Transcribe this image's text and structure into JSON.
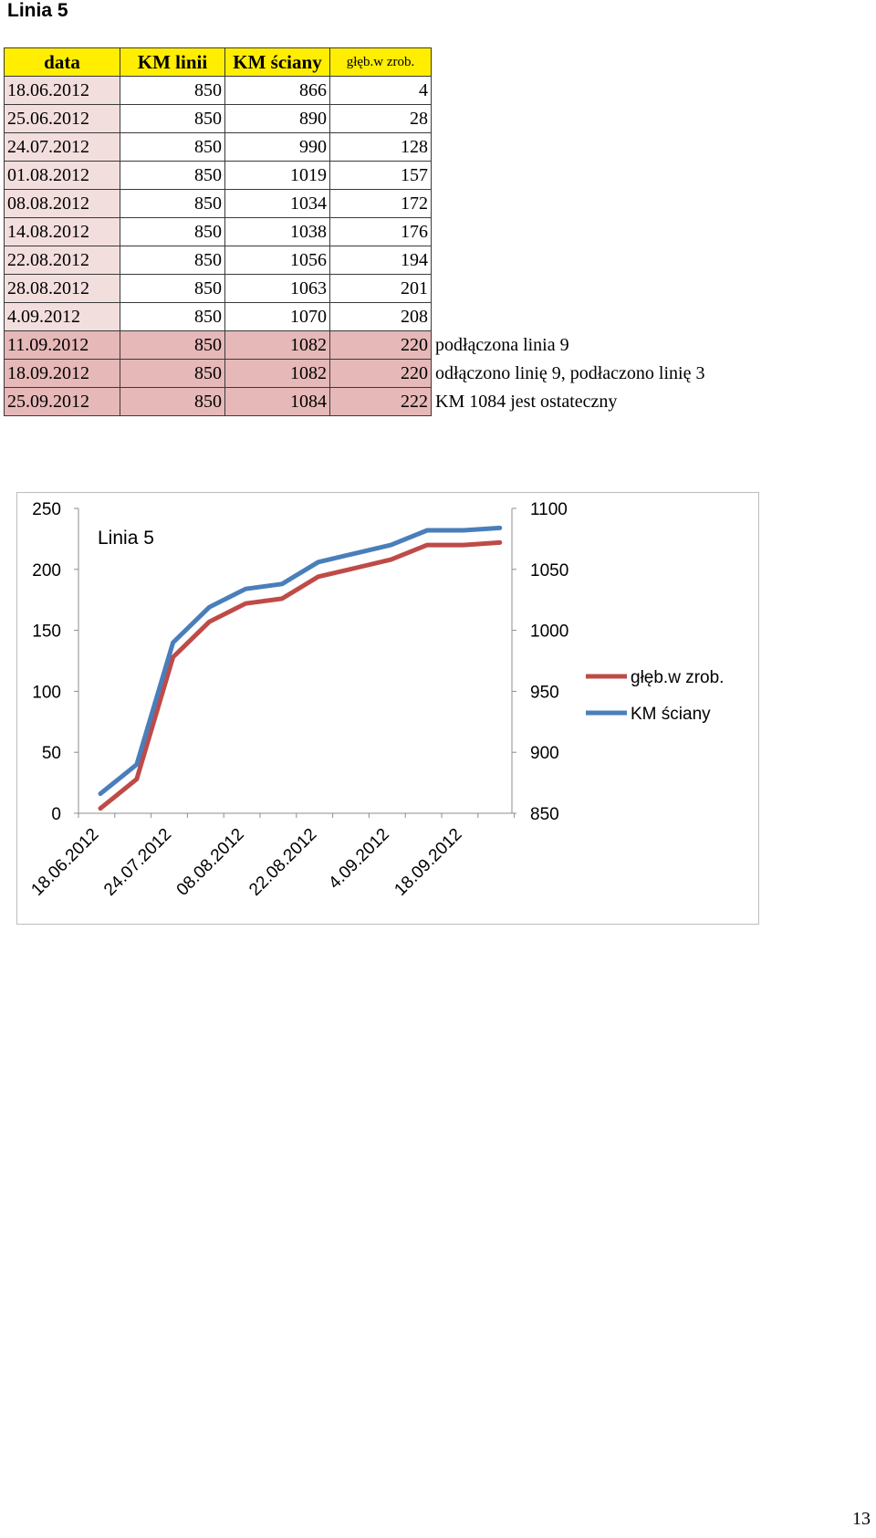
{
  "page": {
    "title": "Linia 5",
    "page_number": "13"
  },
  "table": {
    "headers": [
      "data",
      "KM linii",
      "KM ściany",
      "głęb.w zrob."
    ],
    "rows": [
      {
        "data": "18.06.2012",
        "km_linii": "850",
        "km_sciany": "866",
        "gleb": "4",
        "note": ""
      },
      {
        "data": "25.06.2012",
        "km_linii": "850",
        "km_sciany": "890",
        "gleb": "28",
        "note": ""
      },
      {
        "data": "24.07.2012",
        "km_linii": "850",
        "km_sciany": "990",
        "gleb": "128",
        "note": ""
      },
      {
        "data": "01.08.2012",
        "km_linii": "850",
        "km_sciany": "1019",
        "gleb": "157",
        "note": ""
      },
      {
        "data": "08.08.2012",
        "km_linii": "850",
        "km_sciany": "1034",
        "gleb": "172",
        "note": ""
      },
      {
        "data": "14.08.2012",
        "km_linii": "850",
        "km_sciany": "1038",
        "gleb": "176",
        "note": ""
      },
      {
        "data": "22.08.2012",
        "km_linii": "850",
        "km_sciany": "1056",
        "gleb": "194",
        "note": ""
      },
      {
        "data": "28.08.2012",
        "km_linii": "850",
        "km_sciany": "1063",
        "gleb": "201",
        "note": ""
      },
      {
        "data": "4.09.2012",
        "km_linii": "850",
        "km_sciany": "1070",
        "gleb": "208",
        "note": ""
      },
      {
        "data": "11.09.2012",
        "km_linii": "850",
        "km_sciany": "1082",
        "gleb": "220",
        "note": "podłączona linia 9",
        "highlight": true
      },
      {
        "data": "18.09.2012",
        "km_linii": "850",
        "km_sciany": "1082",
        "gleb": "220",
        "note": "odłączono linię 9, podłaczono linię 3",
        "highlight": true
      },
      {
        "data": "25.09.2012",
        "km_linii": "850",
        "km_sciany": "1084",
        "gleb": "222",
        "note": "KM 1084 jest ostateczny",
        "highlight": true
      }
    ]
  },
  "colors": {
    "header_bg": "#ffee00",
    "date_cell_bg": "#f3dede",
    "highlight_bg": "#e6b8b8",
    "series_gleb": "#be4b48",
    "series_km_sciany": "#4a7ebb",
    "chart_border": "#bdbdbd"
  },
  "chart_data": {
    "type": "line",
    "title": "Linia 5",
    "x": [
      "18.06.2012",
      "25.06.2012",
      "24.07.2012",
      "01.08.2012",
      "08.08.2012",
      "14.08.2012",
      "22.08.2012",
      "28.08.2012",
      "4.09.2012",
      "11.09.2012",
      "18.09.2012",
      "25.09.2012"
    ],
    "x_tick_labels": [
      "18.06.2012",
      "24.07.2012",
      "08.08.2012",
      "22.08.2012",
      "4.09.2012",
      "18.09.2012"
    ],
    "series": [
      {
        "name": "głęb.w zrob.",
        "axis": "left",
        "color": "#be4b48",
        "values": [
          4,
          28,
          128,
          157,
          172,
          176,
          194,
          201,
          208,
          220,
          220,
          222
        ]
      },
      {
        "name": "KM ściany",
        "axis": "right",
        "color": "#4a7ebb",
        "values": [
          866,
          890,
          990,
          1019,
          1034,
          1038,
          1056,
          1063,
          1070,
          1082,
          1082,
          1084
        ]
      }
    ],
    "y_left": {
      "range": [
        0,
        250
      ],
      "ticks": [
        "0",
        "50",
        "100",
        "150",
        "200",
        "250"
      ]
    },
    "y_right": {
      "range": [
        850,
        1100
      ],
      "ticks": [
        "850",
        "900",
        "950",
        "1000",
        "1050",
        "1100"
      ]
    },
    "legend_position": "right",
    "grid": false
  }
}
